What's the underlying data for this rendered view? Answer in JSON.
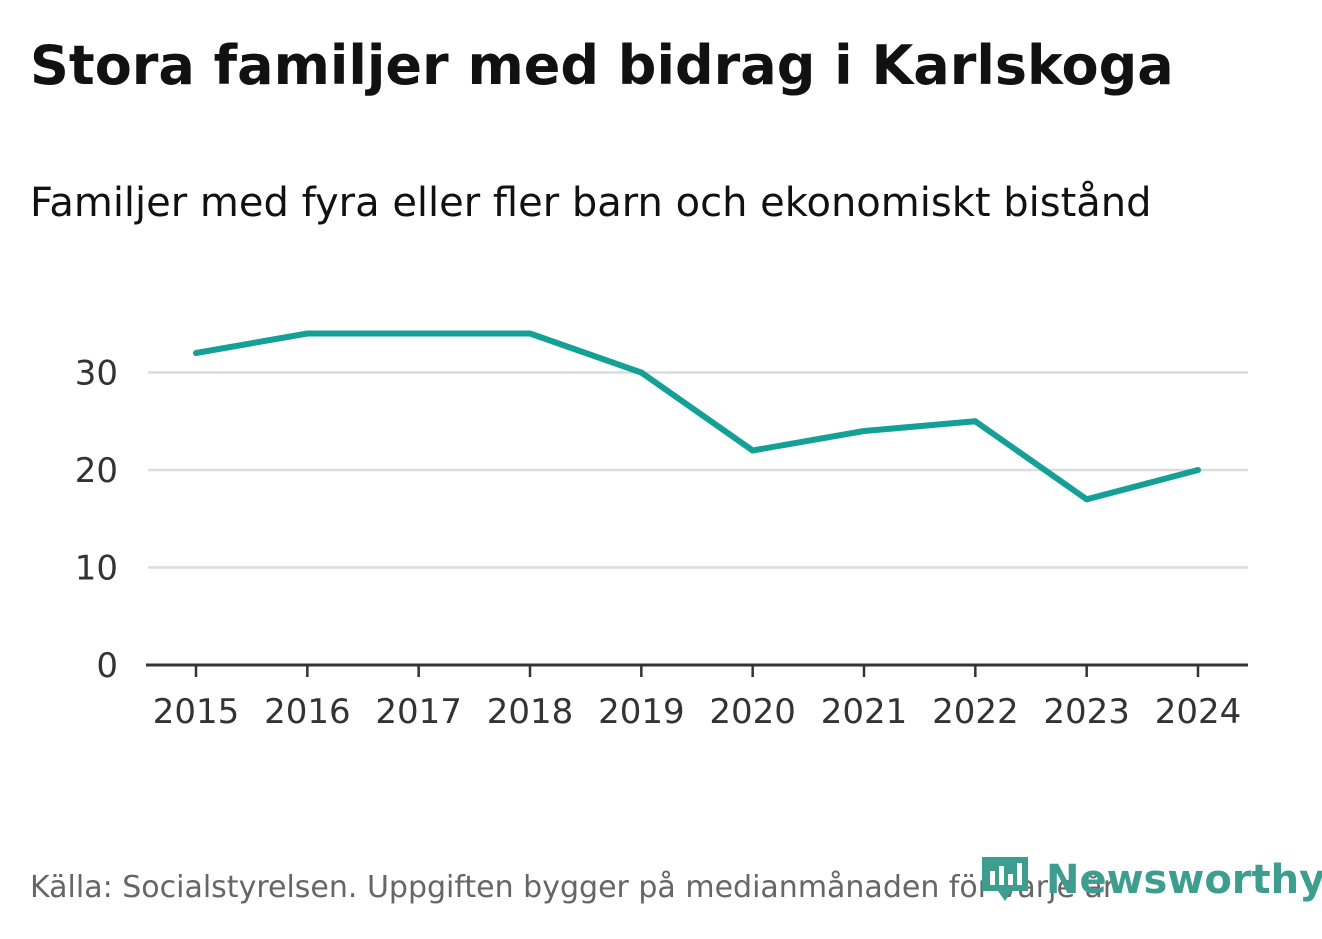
{
  "title": "Stora familjer med bidrag i Karlskoga",
  "subtitle": "Familjer med fyra eller fler barn och ekonomiskt bistånd",
  "footer": {
    "source": "Källa: Socialstyrelsen. Uppgiften bygger på medianmånaden för varje år"
  },
  "logo": {
    "text": "Newsworthy",
    "color": "#3d9d8f"
  },
  "chart_data": {
    "type": "line",
    "title": "Stora familjer med bidrag i Karlskoga",
    "subtitle": "Familjer med fyra eller fler barn och ekonomiskt bistånd",
    "x": [
      "2015",
      "2016",
      "2017",
      "2018",
      "2019",
      "2020",
      "2021",
      "2022",
      "2023",
      "2024"
    ],
    "series": [
      {
        "values": [
          32,
          34,
          34,
          34,
          30,
          22,
          24,
          25,
          17,
          20
        ],
        "color": "#14a097"
      }
    ],
    "yticks": [
      "0",
      "10",
      "20",
      "30"
    ],
    "ylim": [
      0,
      38
    ],
    "grid": true,
    "legend": "none"
  }
}
